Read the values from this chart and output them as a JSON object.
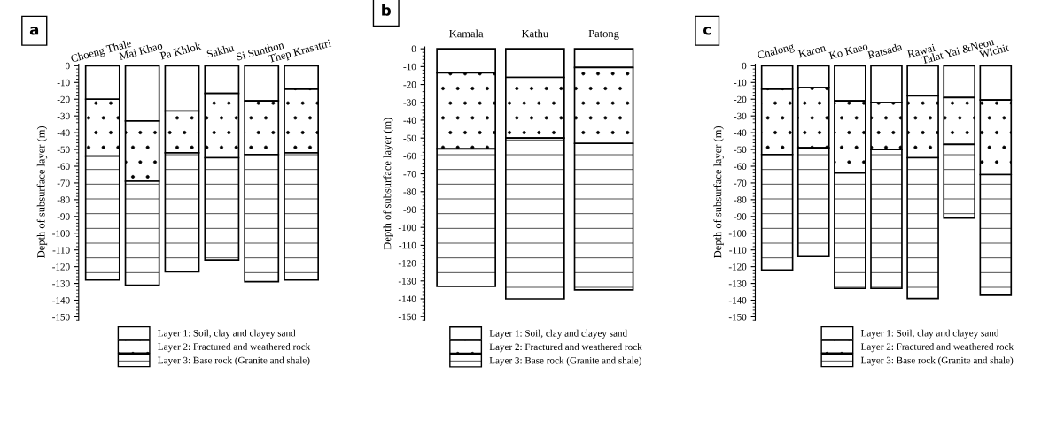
{
  "chart_data": [
    {
      "type": "bar",
      "title": "a",
      "ylabel": "Depth of subsurface layer (m)",
      "stacked": true,
      "legend": "bottom",
      "grid": false,
      "categories": [
        "Choeng Thale",
        "Mai Khao",
        "Pa Khlok",
        "Sakhu",
        "Si Sunthon",
        "Thep Krasattri"
      ],
      "ylim": [
        -152,
        1
      ],
      "yticks": [
        0,
        -10,
        -20,
        -30,
        -40,
        -50,
        -60,
        -70,
        -80,
        -90,
        -100,
        -110,
        -120,
        -130,
        -140,
        -150
      ],
      "series": [
        {
          "name": "Layer 1: Soil, clay and clayey sand",
          "color": "#ffffff",
          "values": [
            -20,
            -33,
            -27,
            -16.5,
            -21,
            -14
          ]
        },
        {
          "name": "Layer 2: Fractured and weathered rock",
          "color": "#000000",
          "values": [
            -34,
            -36,
            -25,
            -38.5,
            -32,
            -38
          ]
        },
        {
          "name": "Layer 3: Base rock (Granite and shale)",
          "color": "#000000",
          "values": [
            -74,
            -62,
            -71,
            -61,
            -76,
            -76
          ]
        }
      ]
    },
    {
      "type": "bar",
      "title": "b",
      "ylabel": "Depth of subsurface layer (m)",
      "stacked": true,
      "legend": "bottom",
      "grid": false,
      "categories": [
        "Kamala",
        "Kathu",
        "Patong"
      ],
      "ylim": [
        -152,
        1
      ],
      "yticks": [
        0,
        -10,
        -20,
        -30,
        -40,
        -50,
        -60,
        -70,
        -80,
        -90,
        -100,
        -110,
        -120,
        -130,
        -140,
        -150
      ],
      "series": [
        {
          "name": "Layer 1: Soil, clay and clayey sand",
          "color": "#ffffff",
          "values": [
            -13.5,
            -16,
            -10.5
          ]
        },
        {
          "name": "Layer 2: Fractured and weathered rock",
          "color": "#000000",
          "values": [
            -42.5,
            -34,
            -42.5
          ]
        },
        {
          "name": "Layer 3: Base rock (Granite and shale)",
          "color": "#000000",
          "values": [
            -77,
            -90,
            -82
          ]
        }
      ]
    },
    {
      "type": "bar",
      "title": "c",
      "ylabel": "Depth of subsurface layer (m)",
      "stacked": true,
      "legend": "bottom right",
      "grid": false,
      "categories": [
        "Chalong",
        "Karon",
        "Ko Kaeo",
        "Ratsada",
        "Rawai",
        "Talat Yai &Neou",
        "Wichit"
      ],
      "ylim": [
        -152,
        1
      ],
      "yticks": [
        0,
        -10,
        -20,
        -30,
        -40,
        -50,
        -60,
        -70,
        -80,
        -90,
        -100,
        -110,
        -120,
        -130,
        -140,
        -150
      ],
      "series": [
        {
          "name": "Layer 1: Soil, clay and clayey sand",
          "color": "#ffffff",
          "values": [
            -14,
            -13,
            -21,
            -22,
            -18,
            -19,
            -20.5
          ]
        },
        {
          "name": "Layer 2: Fractured and weathered rock",
          "color": "#000000",
          "values": [
            -39,
            -36,
            -43,
            -28,
            -37,
            -28,
            -44.5
          ]
        },
        {
          "name": "Layer 3: Base rock (Granite and shale)",
          "color": "#000000",
          "values": [
            -69,
            -65,
            -69,
            -83,
            -84,
            -44,
            -72
          ]
        }
      ]
    }
  ]
}
